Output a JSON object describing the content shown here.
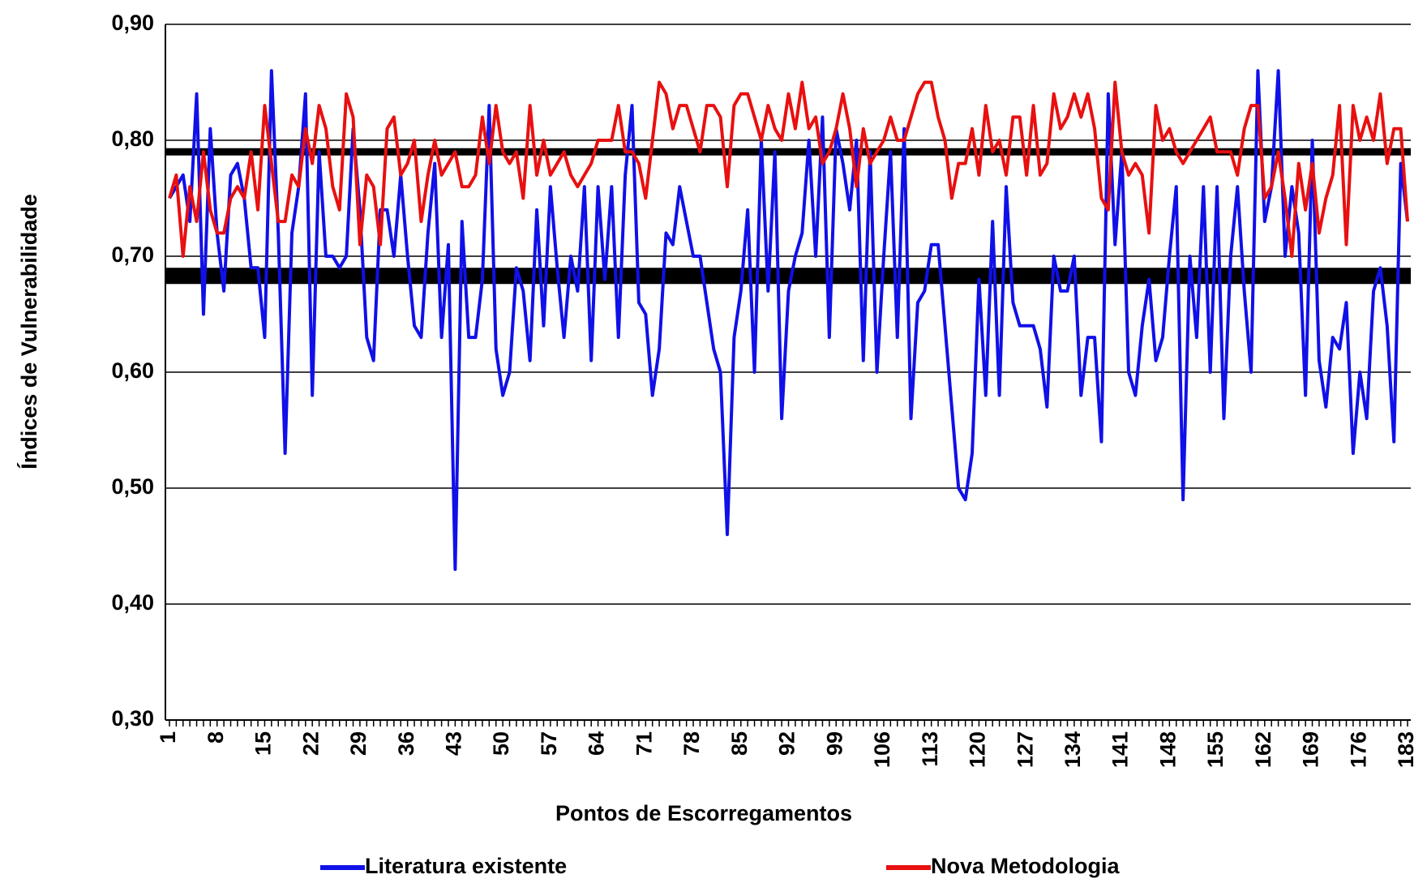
{
  "chart_data": {
    "type": "line",
    "xlabel": "Pontos de Escorregamentos",
    "ylabel": "Índices de Vulnerabilidade",
    "x": [
      1,
      2,
      3,
      4,
      5,
      6,
      7,
      8,
      9,
      10,
      11,
      12,
      13,
      14,
      15,
      16,
      17,
      18,
      19,
      20,
      21,
      22,
      23,
      24,
      25,
      26,
      27,
      28,
      29,
      30,
      31,
      32,
      33,
      34,
      35,
      36,
      37,
      38,
      39,
      40,
      41,
      42,
      43,
      44,
      45,
      46,
      47,
      48,
      49,
      50,
      51,
      52,
      53,
      54,
      55,
      56,
      57,
      58,
      59,
      60,
      61,
      62,
      63,
      64,
      65,
      66,
      67,
      68,
      69,
      70,
      71,
      72,
      73,
      74,
      75,
      76,
      77,
      78,
      79,
      80,
      81,
      82,
      83,
      84,
      85,
      86,
      87,
      88,
      89,
      90,
      91,
      92,
      93,
      94,
      95,
      96,
      97,
      98,
      99,
      100,
      101,
      102,
      103,
      104,
      105,
      106,
      107,
      108,
      109,
      110,
      111,
      112,
      113,
      114,
      115,
      116,
      117,
      118,
      119,
      120,
      121,
      122,
      123,
      124,
      125,
      126,
      127,
      128,
      129,
      130,
      131,
      132,
      133,
      134,
      135,
      136,
      137,
      138,
      139,
      140,
      141,
      142,
      143,
      144,
      145,
      146,
      147,
      148,
      149,
      150,
      151,
      152,
      153,
      154,
      155,
      156,
      157,
      158,
      159,
      160,
      161,
      162,
      163,
      164,
      165,
      166,
      167,
      168,
      169,
      170,
      171,
      172,
      173,
      174,
      175,
      176,
      177,
      178,
      179,
      180,
      181,
      182,
      183
    ],
    "series": [
      {
        "name": "Literatura existente",
        "color": "#1010e8",
        "values": [
          0.75,
          0.76,
          0.77,
          0.73,
          0.84,
          0.65,
          0.81,
          0.72,
          0.67,
          0.77,
          0.78,
          0.75,
          0.69,
          0.69,
          0.63,
          0.86,
          0.72,
          0.53,
          0.72,
          0.76,
          0.84,
          0.58,
          0.79,
          0.7,
          0.7,
          0.69,
          0.7,
          0.81,
          0.74,
          0.63,
          0.61,
          0.74,
          0.74,
          0.7,
          0.77,
          0.7,
          0.64,
          0.63,
          0.72,
          0.78,
          0.63,
          0.71,
          0.43,
          0.73,
          0.63,
          0.63,
          0.68,
          0.83,
          0.62,
          0.58,
          0.6,
          0.69,
          0.67,
          0.61,
          0.74,
          0.64,
          0.76,
          0.69,
          0.63,
          0.7,
          0.67,
          0.76,
          0.61,
          0.76,
          0.68,
          0.76,
          0.63,
          0.77,
          0.83,
          0.66,
          0.65,
          0.58,
          0.62,
          0.72,
          0.71,
          0.76,
          0.73,
          0.7,
          0.7,
          0.66,
          0.62,
          0.6,
          0.46,
          0.63,
          0.67,
          0.74,
          0.6,
          0.8,
          0.67,
          0.79,
          0.56,
          0.67,
          0.7,
          0.72,
          0.8,
          0.7,
          0.82,
          0.63,
          0.81,
          0.78,
          0.74,
          0.8,
          0.61,
          0.79,
          0.6,
          0.7,
          0.79,
          0.63,
          0.81,
          0.56,
          0.66,
          0.67,
          0.71,
          0.71,
          0.64,
          0.57,
          0.5,
          0.49,
          0.53,
          0.68,
          0.58,
          0.73,
          0.58,
          0.76,
          0.66,
          0.64,
          0.64,
          0.64,
          0.62,
          0.57,
          0.7,
          0.67,
          0.67,
          0.7,
          0.58,
          0.63,
          0.63,
          0.54,
          0.84,
          0.71,
          0.79,
          0.6,
          0.58,
          0.64,
          0.68,
          0.61,
          0.63,
          0.7,
          0.76,
          0.49,
          0.7,
          0.63,
          0.76,
          0.6,
          0.76,
          0.56,
          0.7,
          0.76,
          0.67,
          0.6,
          0.86,
          0.73,
          0.76,
          0.86,
          0.7,
          0.76,
          0.72,
          0.58,
          0.8,
          0.61,
          0.57,
          0.63,
          0.62,
          0.66,
          0.53,
          0.6,
          0.56,
          0.67,
          0.69,
          0.64,
          0.54,
          0.78,
          0.73
        ]
      },
      {
        "name": "Nova Metodologia",
        "color": "#e81010",
        "values": [
          0.75,
          0.77,
          0.7,
          0.76,
          0.73,
          0.79,
          0.74,
          0.72,
          0.72,
          0.75,
          0.76,
          0.75,
          0.79,
          0.74,
          0.83,
          0.78,
          0.73,
          0.73,
          0.77,
          0.76,
          0.81,
          0.78,
          0.83,
          0.81,
          0.76,
          0.74,
          0.84,
          0.82,
          0.71,
          0.77,
          0.76,
          0.71,
          0.81,
          0.82,
          0.77,
          0.78,
          0.8,
          0.73,
          0.77,
          0.8,
          0.77,
          0.78,
          0.79,
          0.76,
          0.76,
          0.77,
          0.82,
          0.78,
          0.83,
          0.79,
          0.78,
          0.79,
          0.75,
          0.83,
          0.77,
          0.8,
          0.77,
          0.78,
          0.79,
          0.77,
          0.76,
          0.77,
          0.78,
          0.8,
          0.8,
          0.8,
          0.83,
          0.79,
          0.79,
          0.78,
          0.75,
          0.8,
          0.85,
          0.84,
          0.81,
          0.83,
          0.83,
          0.81,
          0.79,
          0.83,
          0.83,
          0.82,
          0.76,
          0.83,
          0.84,
          0.84,
          0.82,
          0.8,
          0.83,
          0.81,
          0.8,
          0.84,
          0.81,
          0.85,
          0.81,
          0.82,
          0.78,
          0.79,
          0.81,
          0.84,
          0.81,
          0.76,
          0.81,
          0.78,
          0.79,
          0.8,
          0.82,
          0.8,
          0.8,
          0.82,
          0.84,
          0.85,
          0.85,
          0.82,
          0.8,
          0.75,
          0.78,
          0.78,
          0.81,
          0.77,
          0.83,
          0.79,
          0.8,
          0.77,
          0.82,
          0.82,
          0.77,
          0.83,
          0.77,
          0.78,
          0.84,
          0.81,
          0.82,
          0.84,
          0.82,
          0.84,
          0.81,
          0.75,
          0.74,
          0.85,
          0.79,
          0.77,
          0.78,
          0.77,
          0.72,
          0.83,
          0.8,
          0.81,
          0.79,
          0.78,
          0.79,
          0.8,
          0.81,
          0.82,
          0.79,
          0.79,
          0.79,
          0.77,
          0.81,
          0.83,
          0.83,
          0.75,
          0.76,
          0.79,
          0.75,
          0.7,
          0.78,
          0.74,
          0.78,
          0.72,
          0.75,
          0.77,
          0.83,
          0.71,
          0.83,
          0.8,
          0.82,
          0.8,
          0.84,
          0.78,
          0.81,
          0.81,
          0.73
        ]
      }
    ],
    "reference_lines": [
      0.79,
      0.683
    ],
    "xlim": [
      1,
      183
    ],
    "xticks": [
      1,
      8,
      15,
      22,
      29,
      36,
      43,
      50,
      57,
      64,
      71,
      78,
      85,
      92,
      99,
      106,
      113,
      120,
      127,
      134,
      141,
      148,
      155,
      162,
      169,
      176,
      183
    ],
    "ylim": [
      0.3,
      0.9
    ],
    "yticks": [
      {
        "value": 0.3,
        "label": "0,30"
      },
      {
        "value": 0.4,
        "label": "0,40"
      },
      {
        "value": 0.5,
        "label": "0,50"
      },
      {
        "value": 0.6,
        "label": "0,60"
      },
      {
        "value": 0.7,
        "label": "0,70"
      },
      {
        "value": 0.8,
        "label": "0,80"
      },
      {
        "value": 0.9,
        "label": "0,90"
      }
    ],
    "grid": true
  }
}
